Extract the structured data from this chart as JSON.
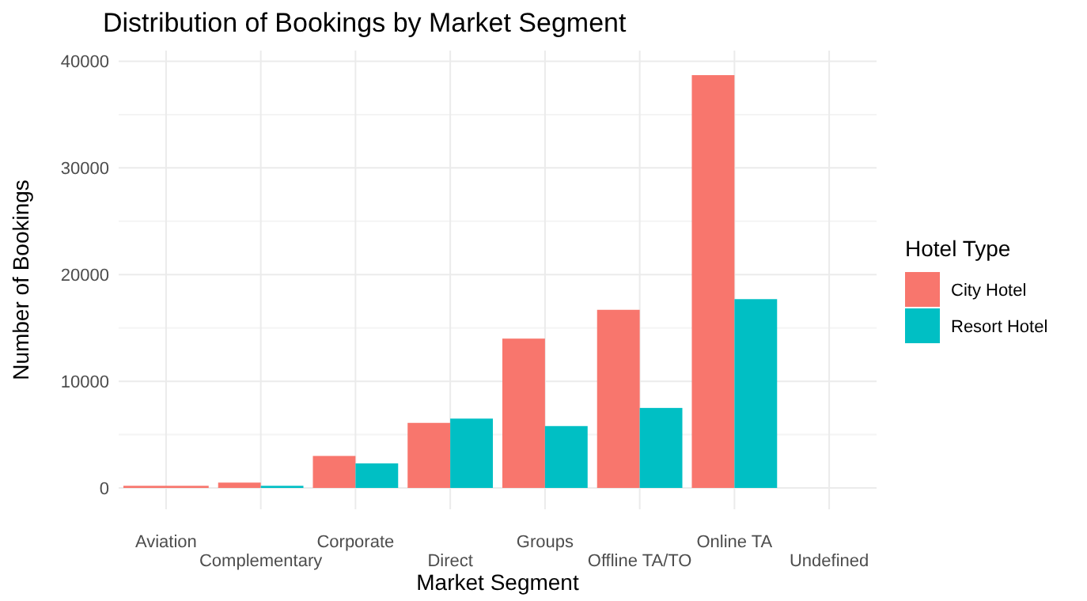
{
  "chart_data": {
    "type": "bar",
    "title": "Distribution of Bookings by Market Segment",
    "xlabel": "Market Segment",
    "ylabel": "Number of Bookings",
    "legend_title": "Hotel Type",
    "categories": [
      "Aviation",
      "Complementary",
      "Corporate",
      "Direct",
      "Groups",
      "Offline TA/TO",
      "Online TA",
      "Undefined"
    ],
    "series": [
      {
        "name": "City Hotel",
        "color": "#f8766d",
        "values": [
          200,
          500,
          3000,
          6100,
          14000,
          16700,
          38700,
          0
        ]
      },
      {
        "name": "Resort Hotel",
        "color": "#00bfc4",
        "values": [
          null,
          200,
          2300,
          6500,
          5800,
          7500,
          17700,
          null
        ]
      }
    ],
    "ylim": [
      -2000,
      41000
    ],
    "yticks": [
      0,
      10000,
      20000,
      30000,
      40000
    ],
    "grid": true,
    "legend": "right"
  }
}
